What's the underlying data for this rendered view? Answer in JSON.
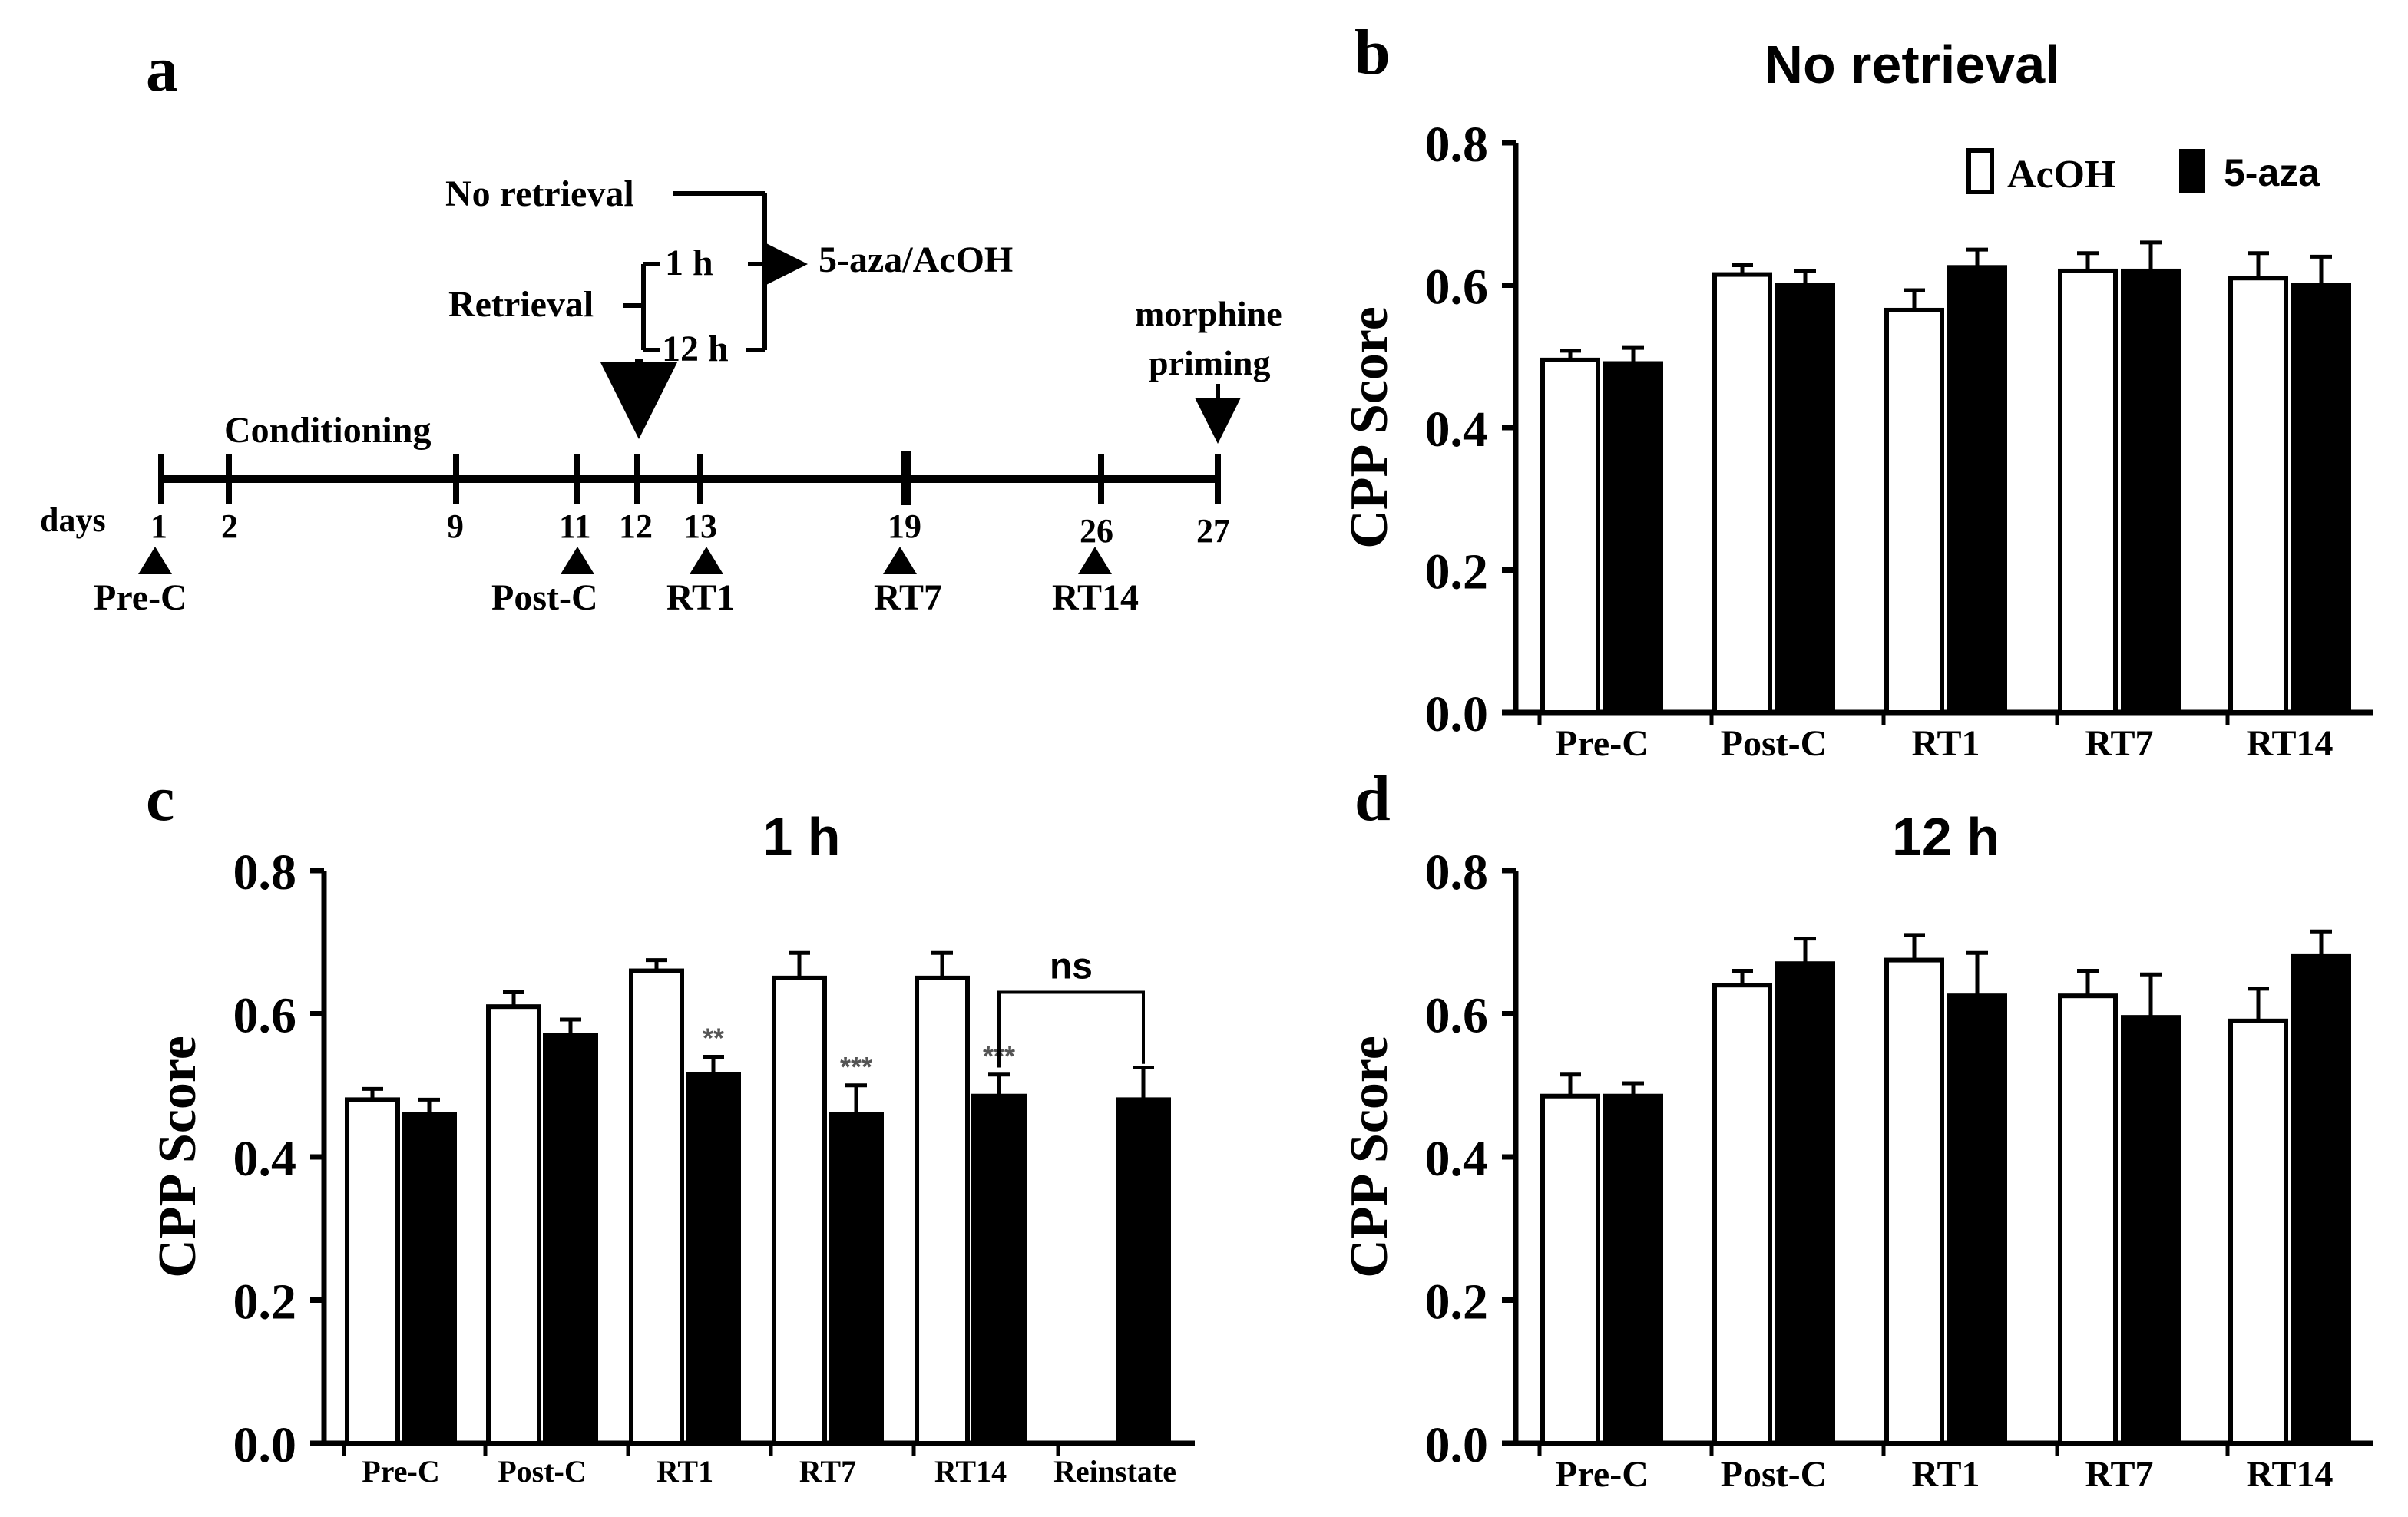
{
  "colors": {
    "acoh_fill": "#ffffff",
    "aza_fill": "#000000",
    "ink": "#000000"
  },
  "panel_a": {
    "label": "a",
    "days_label": "days",
    "conditioning_label": "Conditioning",
    "no_retrieval_label": "No retrieval",
    "retrieval_label": "Retrieval",
    "one_h_label": "1 h",
    "twelve_h_label": "12 h",
    "drug_label": "5-aza/AcOH",
    "morphine_label_1": "morphine",
    "morphine_label_2": "priming",
    "days": [
      "1",
      "2",
      "9",
      "11",
      "12",
      "13",
      "19",
      "26",
      "27"
    ],
    "tests": [
      "Pre-C",
      "Post-C",
      "RT1",
      "RT7",
      "RT14"
    ]
  },
  "legend": {
    "acoh": "AcOH",
    "aza": "5-aza"
  },
  "chart_data": [
    {
      "id": "b",
      "panel_label": "b",
      "type": "bar",
      "title": "No retrieval",
      "ylabel": "CPP Score",
      "ylim": [
        0,
        0.8
      ],
      "yticks": [
        "0.0",
        "0.2",
        "0.4",
        "0.6",
        "0.8"
      ],
      "categories": [
        "Pre-C",
        "Post-C",
        "RT1",
        "RT7",
        "RT14"
      ],
      "series": [
        {
          "name": "AcOH",
          "values": [
            0.495,
            0.615,
            0.565,
            0.62,
            0.61
          ],
          "errors": [
            0.013,
            0.013,
            0.028,
            0.025,
            0.035
          ]
        },
        {
          "name": "5-aza",
          "values": [
            0.49,
            0.6,
            0.625,
            0.62,
            0.6
          ],
          "errors": [
            0.022,
            0.02,
            0.025,
            0.04,
            0.04
          ]
        }
      ]
    },
    {
      "id": "c",
      "panel_label": "c",
      "type": "bar",
      "title": "1 h",
      "ylabel": "CPP Score",
      "ylim": [
        0,
        0.8
      ],
      "yticks": [
        "0.0",
        "0.2",
        "0.4",
        "0.6",
        "0.8"
      ],
      "categories": [
        "Pre-C",
        "Post-C",
        "RT1",
        "RT7",
        "RT14",
        "Reinstate"
      ],
      "series": [
        {
          "name": "AcOH",
          "values": [
            0.48,
            0.61,
            0.66,
            0.65,
            0.65,
            null
          ],
          "errors": [
            0.015,
            0.02,
            0.015,
            0.035,
            0.035,
            null
          ]
        },
        {
          "name": "5-aza",
          "values": [
            0.46,
            0.57,
            0.515,
            0.46,
            0.485,
            0.48
          ],
          "errors": [
            0.02,
            0.022,
            0.025,
            0.04,
            0.03,
            0.045
          ]
        }
      ],
      "significance": [
        "",
        "",
        "**",
        "***",
        "***",
        ""
      ],
      "annotation": "ns"
    },
    {
      "id": "d",
      "panel_label": "d",
      "type": "bar",
      "title": "12 h",
      "ylabel": "CPP Score",
      "ylim": [
        0,
        0.8
      ],
      "yticks": [
        "0.0",
        "0.2",
        "0.4",
        "0.6",
        "0.8"
      ],
      "categories": [
        "Pre-C",
        "Post-C",
        "RT1",
        "RT7",
        "RT14"
      ],
      "series": [
        {
          "name": "AcOH",
          "values": [
            0.485,
            0.64,
            0.675,
            0.625,
            0.59
          ],
          "errors": [
            0.03,
            0.02,
            0.035,
            0.035,
            0.045
          ]
        },
        {
          "name": "5-aza",
          "values": [
            0.485,
            0.67,
            0.625,
            0.595,
            0.68
          ],
          "errors": [
            0.018,
            0.035,
            0.06,
            0.06,
            0.035
          ]
        }
      ]
    }
  ]
}
